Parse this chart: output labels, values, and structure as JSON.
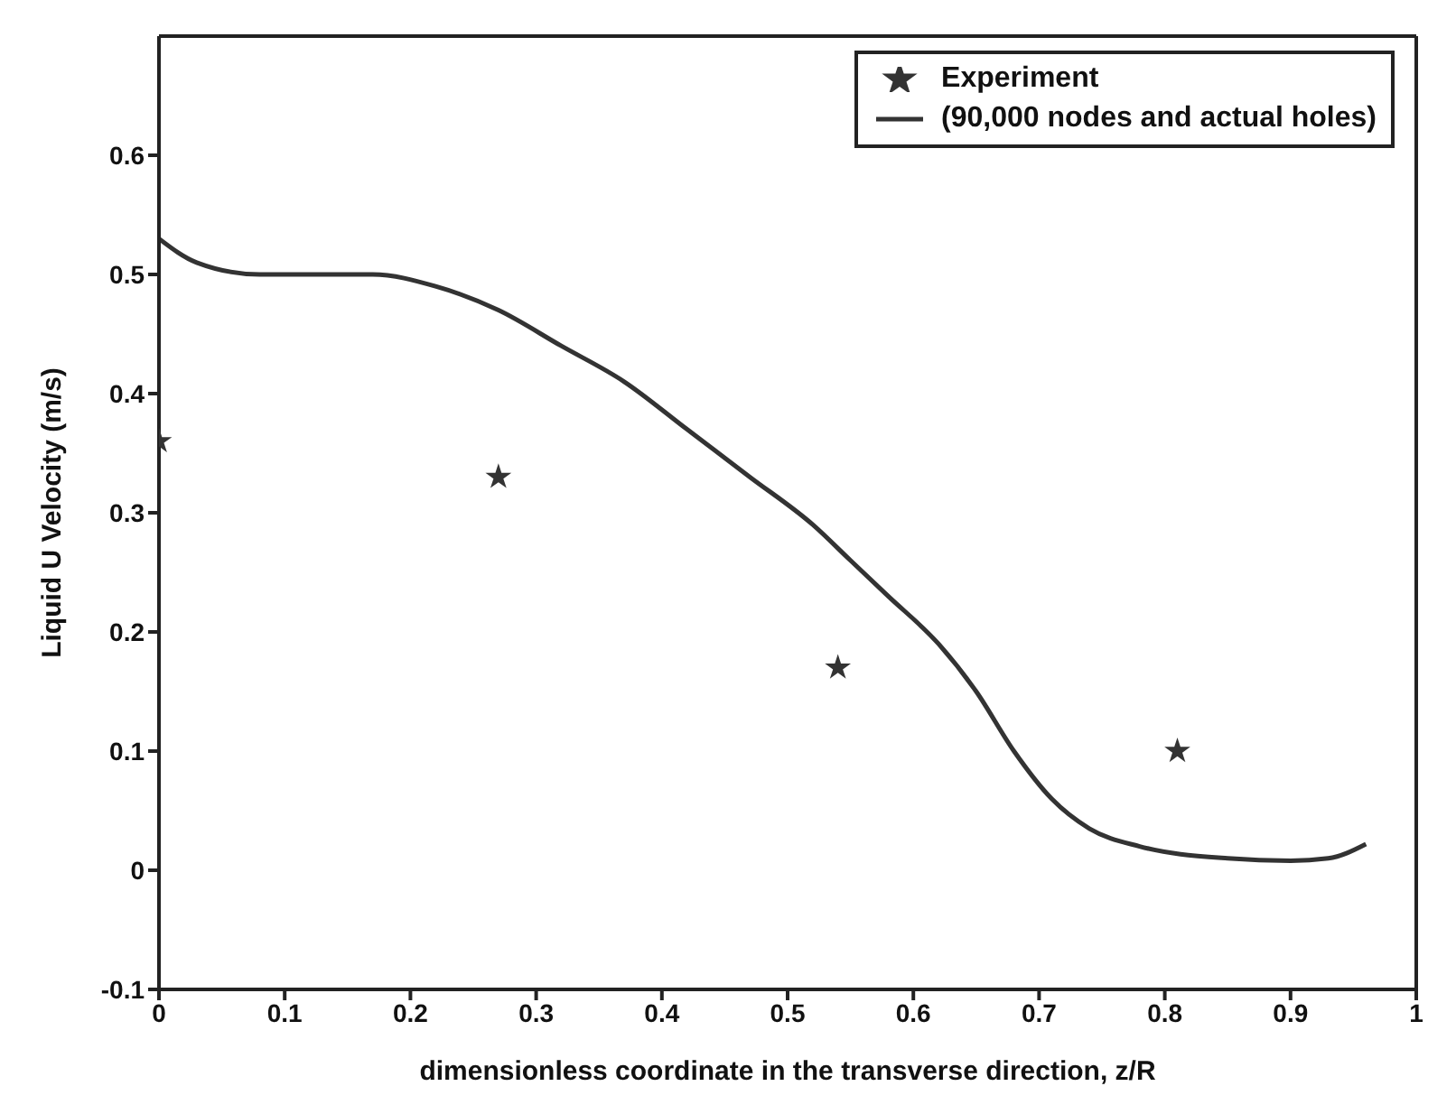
{
  "chart_data": {
    "type": "line",
    "xlabel": "dimensionless coordinate in the transverse direction, z/R",
    "ylabel": "Liquid U Velocity (m/s)",
    "xlim": [
      0,
      1
    ],
    "ylim": [
      -0.1,
      0.7
    ],
    "xticks": [
      0,
      0.1,
      0.2,
      0.3,
      0.4,
      0.5,
      0.6,
      0.7,
      0.8,
      0.9,
      1
    ],
    "yticks": [
      -0.1,
      0,
      0.1,
      0.2,
      0.3,
      0.4,
      0.5,
      0.6
    ],
    "legend": "top right",
    "series": [
      {
        "name": "Experiment",
        "type": "scatter",
        "marker": "star",
        "color": "#333333",
        "x": [
          0,
          0.27,
          0.54,
          0.81
        ],
        "values": [
          0.36,
          0.33,
          0.17,
          0.1
        ]
      },
      {
        "name": "(90,000 nodes and actual holes)",
        "marker": "none",
        "line_style": "solid",
        "color": "#333333",
        "x": [
          0,
          0.03,
          0.08,
          0.17,
          0.22,
          0.27,
          0.32,
          0.37,
          0.42,
          0.47,
          0.52,
          0.55,
          0.58,
          0.62,
          0.65,
          0.68,
          0.71,
          0.74,
          0.78,
          0.85,
          0.9,
          0.93,
          0.96
        ],
        "values": [
          0.53,
          0.51,
          0.5,
          0.5,
          0.49,
          0.47,
          0.44,
          0.41,
          0.37,
          0.33,
          0.29,
          0.26,
          0.23,
          0.19,
          0.15,
          0.1,
          0.06,
          0.035,
          0.02,
          0.01,
          0.008,
          0.01,
          0.022
        ]
      }
    ]
  }
}
